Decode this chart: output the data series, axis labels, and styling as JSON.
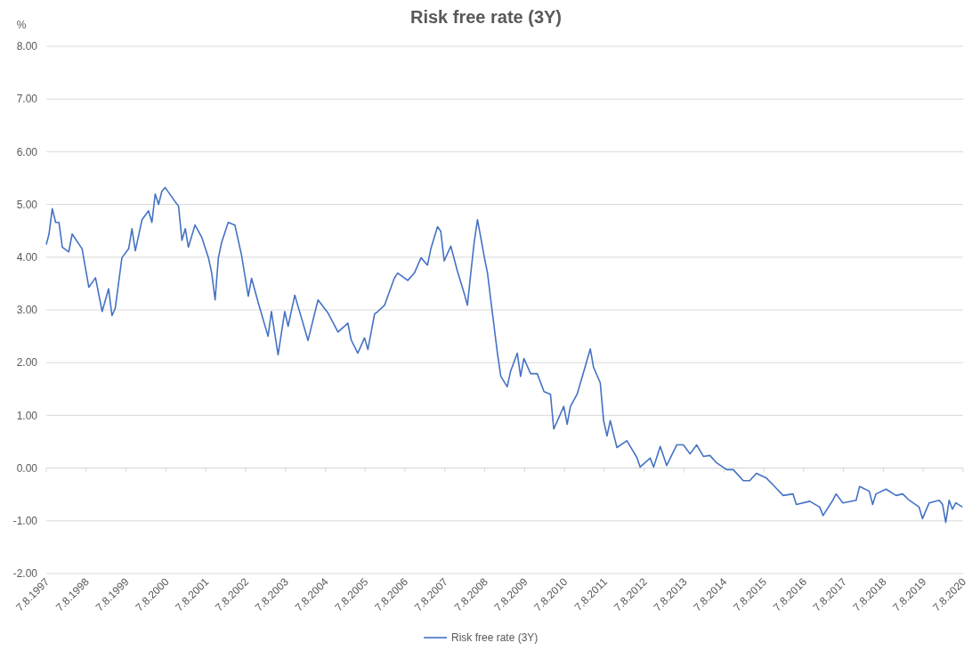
{
  "chart_data": {
    "type": "line",
    "title": "Risk free rate (3Y)",
    "ylabel": "%",
    "legend": "bottom",
    "grid": "y",
    "xlim": [
      "1997-08-07",
      "2020-08-07"
    ],
    "xticks": [
      {
        "value": "1997-08-07",
        "label": "7.8.1997"
      },
      {
        "value": "1998-08-07",
        "label": "7.8.1998"
      },
      {
        "value": "1999-08-07",
        "label": "7.8.1999"
      },
      {
        "value": "2000-08-07",
        "label": "7.8.2000"
      },
      {
        "value": "2001-08-07",
        "label": "7.8.2001"
      },
      {
        "value": "2002-08-07",
        "label": "7.8.2002"
      },
      {
        "value": "2003-08-07",
        "label": "7.8.2003"
      },
      {
        "value": "2004-08-07",
        "label": "7.8.2004"
      },
      {
        "value": "2005-08-07",
        "label": "7.8.2005"
      },
      {
        "value": "2006-08-07",
        "label": "7.8.2006"
      },
      {
        "value": "2007-08-07",
        "label": "7.8.2007"
      },
      {
        "value": "2008-08-07",
        "label": "7.8.2008"
      },
      {
        "value": "2009-08-07",
        "label": "7.8.2009"
      },
      {
        "value": "2010-08-07",
        "label": "7.8.2010"
      },
      {
        "value": "2011-08-07",
        "label": "7.8.2011"
      },
      {
        "value": "2012-08-07",
        "label": "7.8.2012"
      },
      {
        "value": "2013-08-07",
        "label": "7.8.2013"
      },
      {
        "value": "2014-08-07",
        "label": "7.8.2014"
      },
      {
        "value": "2015-08-07",
        "label": "7.8.2015"
      },
      {
        "value": "2016-08-07",
        "label": "7.8.2016"
      },
      {
        "value": "2017-08-07",
        "label": "7.8.2017"
      },
      {
        "value": "2018-08-07",
        "label": "7.8.2018"
      },
      {
        "value": "2019-08-07",
        "label": "7.8.2019"
      },
      {
        "value": "2020-08-07",
        "label": "7.8.2020"
      }
    ],
    "ylim": [
      -2,
      8
    ],
    "yticks": [
      {
        "value": -2,
        "label": "-2.00"
      },
      {
        "value": -1,
        "label": "-1.00"
      },
      {
        "value": 0,
        "label": "0.00"
      },
      {
        "value": 1,
        "label": "1.00"
      },
      {
        "value": 2,
        "label": "2.00"
      },
      {
        "value": 3,
        "label": "3.00"
      },
      {
        "value": 4,
        "label": "4.00"
      },
      {
        "value": 5,
        "label": "5.00"
      },
      {
        "value": 6,
        "label": "6.00"
      },
      {
        "value": 7,
        "label": "7.00"
      },
      {
        "value": 8,
        "label": "8.00"
      }
    ],
    "series": [
      {
        "name": "Risk free rate (3Y)",
        "color": "#4472c4",
        "x": [
          "1997-08-07",
          "1997-09",
          "1997-10",
          "1997-11",
          "1997-12",
          "1998-01",
          "1998-03",
          "1998-04",
          "1998-07",
          "1998-09",
          "1998-11",
          "1999-01",
          "1999-03",
          "1999-04",
          "1999-05",
          "1999-07",
          "1999-09",
          "1999-10",
          "1999-11",
          "2000-01",
          "2000-03",
          "2000-04",
          "2000-05",
          "2000-06",
          "2000-07",
          "2000-08",
          "2000-11",
          "2000-12",
          "2001-01",
          "2001-02",
          "2001-03",
          "2001-05",
          "2001-07",
          "2001-09",
          "2001-10",
          "2001-11",
          "2001-12",
          "2002-01",
          "2002-03",
          "2002-05",
          "2002-07",
          "2002-09",
          "2002-10",
          "2002-12",
          "2003-03",
          "2003-04",
          "2003-06",
          "2003-08",
          "2003-09",
          "2003-11",
          "2004-01",
          "2004-03",
          "2004-06",
          "2004-09",
          "2004-12",
          "2005-03",
          "2005-04",
          "2005-06",
          "2005-08",
          "2005-09",
          "2005-11",
          "2005-12",
          "2006-02",
          "2006-04",
          "2006-05",
          "2006-06",
          "2006-09",
          "2006-11",
          "2007-01",
          "2007-03",
          "2007-04",
          "2007-06",
          "2007-07",
          "2007-08",
          "2007-10",
          "2007-12",
          "2008-02",
          "2008-03",
          "2008-04",
          "2008-05",
          "2008-06",
          "2008-07",
          "2008-08",
          "2008-09",
          "2008-10",
          "2008-12",
          "2009-01",
          "2009-03",
          "2009-04",
          "2009-06",
          "2009-07",
          "2009-08",
          "2009-10",
          "2009-12",
          "2010-02",
          "2010-04",
          "2010-05",
          "2010-08",
          "2010-09",
          "2010-10",
          "2010-12",
          "2011-02",
          "2011-04",
          "2011-05",
          "2011-07",
          "2011-08",
          "2011-09",
          "2011-10",
          "2011-12",
          "2012-03",
          "2012-06",
          "2012-07",
          "2012-10",
          "2012-11",
          "2013-01",
          "2013-03",
          "2013-06",
          "2013-08",
          "2013-10",
          "2013-12",
          "2014-02",
          "2014-04",
          "2014-06",
          "2014-09",
          "2014-11",
          "2015-02",
          "2015-04",
          "2015-06",
          "2015-09",
          "2015-11",
          "2016-02",
          "2016-05",
          "2016-06",
          "2016-10",
          "2017-01",
          "2017-02",
          "2017-05",
          "2017-06",
          "2017-08",
          "2017-12",
          "2018-01",
          "2018-04",
          "2018-05",
          "2018-06",
          "2018-09",
          "2018-12",
          "2019-02",
          "2019-04",
          "2019-07",
          "2019-08",
          "2019-10",
          "2020-01",
          "2020-02",
          "2020-03",
          "2020-04",
          "2020-05",
          "2020-06",
          "2020-08"
        ],
        "values": [
          4.24,
          4.44,
          4.92,
          4.66,
          4.66,
          4.19,
          4.1,
          4.44,
          4.16,
          3.43,
          3.61,
          2.97,
          3.4,
          2.89,
          3.03,
          3.99,
          4.16,
          4.54,
          4.12,
          4.71,
          4.88,
          4.66,
          5.2,
          5.0,
          5.25,
          5.32,
          5.05,
          4.97,
          4.32,
          4.54,
          4.19,
          4.61,
          4.38,
          3.99,
          3.7,
          3.19,
          3.99,
          4.29,
          4.66,
          4.61,
          4.04,
          3.26,
          3.6,
          3.14,
          2.5,
          2.97,
          2.15,
          2.97,
          2.69,
          3.28,
          2.85,
          2.42,
          3.19,
          2.94,
          2.58,
          2.75,
          2.43,
          2.18,
          2.47,
          2.25,
          2.92,
          2.97,
          3.09,
          3.43,
          3.6,
          3.7,
          3.56,
          3.7,
          3.99,
          3.85,
          4.16,
          4.58,
          4.49,
          3.93,
          4.21,
          3.73,
          3.31,
          3.09,
          3.7,
          4.27,
          4.71,
          4.38,
          4.02,
          3.7,
          3.19,
          2.18,
          1.74,
          1.54,
          1.84,
          2.18,
          1.74,
          2.08,
          1.79,
          1.79,
          1.45,
          1.4,
          0.74,
          1.17,
          0.83,
          1.17,
          1.4,
          1.84,
          2.26,
          1.91,
          1.62,
          0.9,
          0.61,
          0.9,
          0.39,
          0.52,
          0.2,
          0.02,
          0.19,
          0.02,
          0.41,
          0.05,
          0.44,
          0.44,
          0.27,
          0.44,
          0.22,
          0.24,
          0.1,
          -0.03,
          -0.03,
          -0.24,
          -0.24,
          -0.1,
          -0.19,
          -0.32,
          -0.52,
          -0.49,
          -0.69,
          -0.63,
          -0.74,
          -0.9,
          -0.61,
          -0.49,
          -0.66,
          -0.61,
          -0.35,
          -0.44,
          -0.69,
          -0.49,
          -0.4,
          -0.52,
          -0.49,
          -0.61,
          -0.74,
          -0.96,
          -0.66,
          -0.61,
          -0.69,
          -1.03,
          -0.61,
          -0.78,
          -0.66,
          -0.74
        ]
      }
    ]
  }
}
